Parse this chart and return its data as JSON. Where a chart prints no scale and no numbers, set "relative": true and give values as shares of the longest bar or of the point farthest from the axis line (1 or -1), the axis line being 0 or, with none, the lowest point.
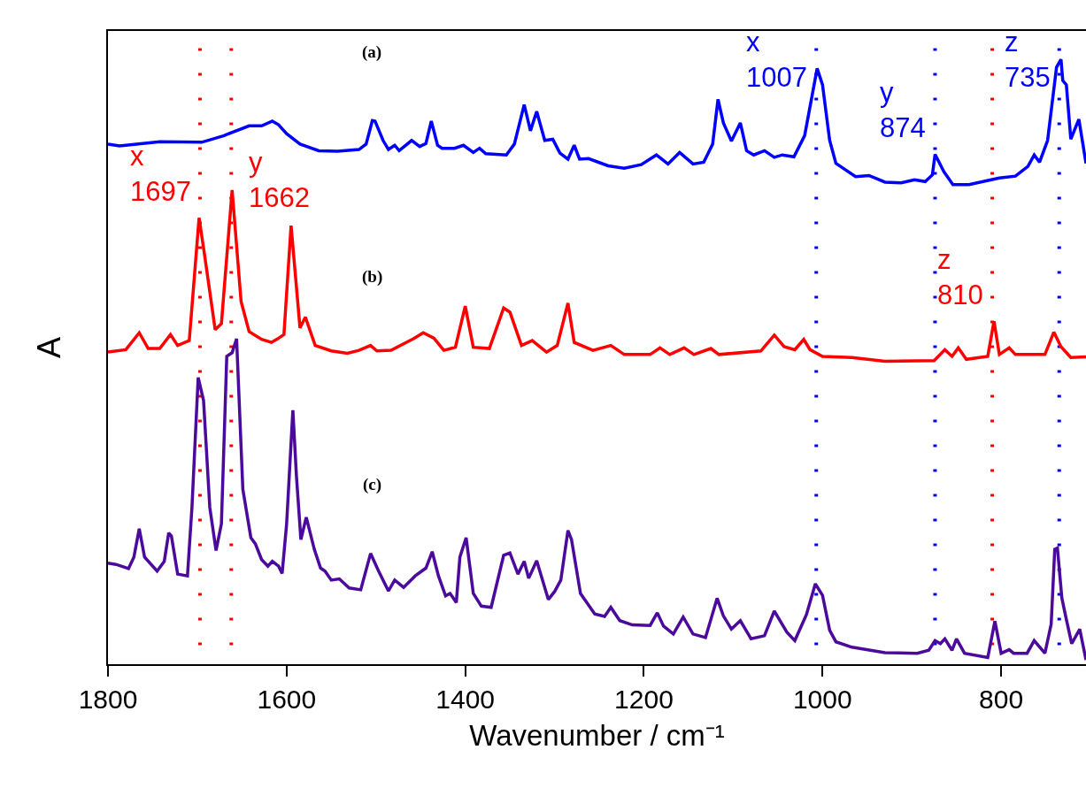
{
  "chart_data": {
    "type": "line",
    "relative": true,
    "xlabel": "Wavenumber / cm⁻¹",
    "ylabel": "A",
    "xlim": [
      1800,
      705
    ],
    "xticks": [
      1800,
      1600,
      1400,
      1200,
      1000,
      800
    ],
    "grid": false,
    "series": [
      {
        "color": "#0000ff",
        "x": [
          1800,
          1787,
          1742,
          1695,
          1670,
          1642,
          1628,
          1616,
          1609,
          1600,
          1585,
          1564,
          1543,
          1519,
          1511,
          1504,
          1501,
          1492,
          1486,
          1479,
          1474,
          1460,
          1451,
          1444,
          1438,
          1431,
          1426,
          1412,
          1402,
          1391,
          1384,
          1377,
          1354,
          1345,
          1334,
          1327,
          1320,
          1311,
          1302,
          1294,
          1285,
          1278,
          1272,
          1262,
          1240,
          1222,
          1203,
          1186,
          1173,
          1160,
          1145,
          1133,
          1123,
          1117,
          1111,
          1102,
          1092,
          1085,
          1077,
          1065,
          1054,
          1045,
          1032,
          1020,
          1006,
          1000,
          992,
          985,
          963,
          948,
          930,
          912,
          897,
          885,
          877,
          874,
          864,
          854,
          836,
          802,
          784,
          770,
          763,
          757,
          748,
          738,
          733,
          731,
          727,
          722,
          713,
          705
        ],
        "values": [
          0.86,
          0.857,
          0.864,
          0.863,
          0.874,
          0.89,
          0.89,
          0.898,
          0.892,
          0.877,
          0.86,
          0.849,
          0.848,
          0.851,
          0.86,
          0.899,
          0.898,
          0.866,
          0.851,
          0.858,
          0.849,
          0.866,
          0.856,
          0.861,
          0.898,
          0.858,
          0.853,
          0.853,
          0.858,
          0.846,
          0.853,
          0.844,
          0.842,
          0.86,
          0.925,
          0.882,
          0.914,
          0.866,
          0.868,
          0.845,
          0.835,
          0.858,
          0.835,
          0.836,
          0.824,
          0.82,
          0.826,
          0.842,
          0.827,
          0.846,
          0.827,
          0.83,
          0.86,
          0.934,
          0.895,
          0.865,
          0.895,
          0.849,
          0.842,
          0.849,
          0.838,
          0.842,
          0.839,
          0.874,
          0.985,
          0.958,
          0.866,
          0.828,
          0.806,
          0.808,
          0.797,
          0.796,
          0.801,
          0.798,
          0.809,
          0.843,
          0.814,
          0.793,
          0.793,
          0.804,
          0.807,
          0.823,
          0.842,
          0.83,
          0.866,
          0.987,
          1.0,
          0.965,
          0.958,
          0.868,
          0.901,
          0.828
        ]
      },
      {
        "color": "#ff0000",
        "x": [
          1800,
          1780,
          1765,
          1755,
          1742,
          1730,
          1722,
          1709,
          1698,
          1692,
          1680,
          1673,
          1661,
          1651,
          1642,
          1628,
          1617,
          1610,
          1603,
          1595,
          1585,
          1579,
          1568,
          1550,
          1532,
          1519,
          1506,
          1499,
          1483,
          1458,
          1447,
          1435,
          1424,
          1411,
          1400,
          1391,
          1373,
          1357,
          1350,
          1337,
          1325,
          1309,
          1297,
          1285,
          1278,
          1257,
          1237,
          1222,
          1193,
          1182,
          1171,
          1155,
          1144,
          1125,
          1116,
          1069,
          1054,
          1043,
          1031,
          1021,
          1014,
          1000,
          967,
          930,
          875,
          863,
          855,
          848,
          839,
          815,
          808,
          802,
          791,
          784,
          751,
          741,
          733,
          722,
          705
        ],
        "values": [
          0.516,
          0.52,
          0.548,
          0.522,
          0.522,
          0.545,
          0.527,
          0.535,
          0.738,
          0.678,
          0.553,
          0.563,
          0.784,
          0.6,
          0.55,
          0.537,
          0.532,
          0.538,
          0.545,
          0.725,
          0.556,
          0.574,
          0.527,
          0.518,
          0.514,
          0.519,
          0.527,
          0.518,
          0.519,
          0.538,
          0.548,
          0.539,
          0.519,
          0.524,
          0.592,
          0.524,
          0.522,
          0.589,
          0.582,
          0.527,
          0.535,
          0.516,
          0.527,
          0.597,
          0.532,
          0.519,
          0.527,
          0.512,
          0.512,
          0.523,
          0.512,
          0.523,
          0.512,
          0.522,
          0.512,
          0.518,
          0.544,
          0.525,
          0.52,
          0.537,
          0.52,
          0.509,
          0.507,
          0.501,
          0.502,
          0.52,
          0.509,
          0.523,
          0.504,
          0.509,
          0.567,
          0.512,
          0.523,
          0.512,
          0.512,
          0.549,
          0.525,
          0.507,
          0.508
        ]
      },
      {
        "color": "#4b0a9b",
        "x": [
          1800,
          1791,
          1777,
          1771,
          1765,
          1759,
          1745,
          1737,
          1732,
          1729,
          1722,
          1711,
          1706,
          1699,
          1693,
          1686,
          1679,
          1673,
          1667,
          1661,
          1656,
          1649,
          1640,
          1635,
          1628,
          1621,
          1616,
          1609,
          1605,
          1600,
          1593,
          1589,
          1584,
          1578,
          1569,
          1562,
          1557,
          1550,
          1541,
          1530,
          1517,
          1506,
          1497,
          1486,
          1479,
          1469,
          1456,
          1444,
          1437,
          1430,
          1422,
          1417,
          1410,
          1406,
          1399,
          1391,
          1382,
          1371,
          1357,
          1350,
          1341,
          1334,
          1329,
          1320,
          1307,
          1300,
          1293,
          1285,
          1281,
          1271,
          1255,
          1244,
          1237,
          1227,
          1213,
          1193,
          1185,
          1178,
          1167,
          1156,
          1145,
          1131,
          1118,
          1111,
          1102,
          1092,
          1080,
          1065,
          1054,
          1040,
          1031,
          1018,
          1008,
          1000,
          992,
          985,
          967,
          930,
          894,
          881,
          874,
          868,
          863,
          855,
          850,
          841,
          815,
          807,
          800,
          791,
          786,
          771,
          763,
          751,
          744,
          740,
          737,
          732,
          727,
          721,
          712,
          705
        ],
        "values": [
          0.167,
          0.165,
          0.158,
          0.177,
          0.224,
          0.177,
          0.154,
          0.17,
          0.217,
          0.212,
          0.149,
          0.146,
          0.259,
          0.474,
          0.436,
          0.259,
          0.188,
          0.232,
          0.509,
          0.515,
          0.538,
          0.289,
          0.209,
          0.199,
          0.173,
          0.162,
          0.17,
          0.162,
          0.15,
          0.232,
          0.42,
          0.311,
          0.206,
          0.243,
          0.19,
          0.159,
          0.154,
          0.139,
          0.141,
          0.126,
          0.123,
          0.183,
          0.154,
          0.121,
          0.139,
          0.127,
          0.146,
          0.159,
          0.186,
          0.146,
          0.113,
          0.117,
          0.102,
          0.177,
          0.209,
          0.117,
          0.096,
          0.094,
          0.18,
          0.184,
          0.149,
          0.17,
          0.142,
          0.171,
          0.107,
          0.12,
          0.139,
          0.221,
          0.206,
          0.117,
          0.083,
          0.079,
          0.094,
          0.072,
          0.065,
          0.064,
          0.085,
          0.063,
          0.05,
          0.078,
          0.05,
          0.044,
          0.109,
          0.08,
          0.058,
          0.072,
          0.042,
          0.047,
          0.088,
          0.053,
          0.039,
          0.082,
          0.133,
          0.114,
          0.056,
          0.037,
          0.028,
          0.019,
          0.018,
          0.023,
          0.039,
          0.034,
          0.042,
          0.023,
          0.042,
          0.018,
          0.011,
          0.071,
          0.018,
          0.024,
          0.018,
          0.018,
          0.039,
          0.018,
          0.066,
          0.19,
          0.192,
          0.109,
          0.074,
          0.034,
          0.058,
          0.007
        ]
      }
    ],
    "ref_lines": [
      {
        "axis": "x",
        "value": 1007,
        "label": "x\n1007",
        "color": "#0000ff",
        "line_style": "dotted"
      },
      {
        "axis": "x",
        "value": 874,
        "label": "y\n874",
        "color": "#0000ff",
        "line_style": "dotted"
      },
      {
        "axis": "x",
        "value": 735,
        "label": "z\n735",
        "color": "#0000ff",
        "line_style": "dotted"
      },
      {
        "axis": "x",
        "value": 1697,
        "label": "x\n1697",
        "color": "#ff0000",
        "line_style": "dotted"
      },
      {
        "axis": "x",
        "value": 1662,
        "label": "y\n1662",
        "color": "#ff0000",
        "line_style": "dotted"
      },
      {
        "axis": "x",
        "value": 810,
        "label": "z\n810",
        "color": "#ff0000",
        "line_style": "dotted"
      }
    ],
    "annotations": [
      "(a)",
      "(b)",
      "(c)"
    ]
  }
}
